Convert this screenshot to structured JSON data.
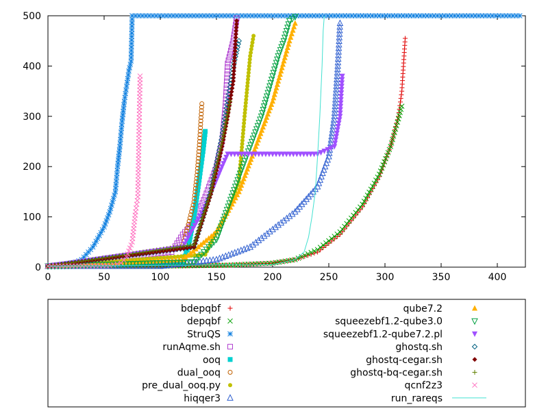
{
  "chart_data": {
    "type": "scatter",
    "title": "",
    "xlabel": "",
    "ylabel": "",
    "xlim": [
      0,
      425
    ],
    "ylim": [
      0,
      500
    ],
    "xticks": [
      0,
      50,
      100,
      150,
      200,
      250,
      300,
      350,
      400
    ],
    "yticks": [
      0,
      100,
      200,
      300,
      400,
      500
    ],
    "xtick_labels": [
      "0",
      "50",
      "100",
      "150",
      "200",
      "250",
      "300",
      "350",
      "400"
    ],
    "ytick_labels": [
      "0",
      "100",
      "200",
      "300",
      "400",
      "500"
    ],
    "grid": false,
    "legend_position": "bottom",
    "series": [
      {
        "name": "bdepqbf",
        "color": "#e00000",
        "marker": "plus",
        "x": [
          0,
          100,
          160,
          200,
          220,
          240,
          260,
          280,
          295,
          305,
          312,
          315,
          317,
          318
        ],
        "y": [
          2,
          2,
          4,
          8,
          15,
          30,
          65,
          120,
          180,
          240,
          300,
          350,
          420,
          455
        ]
      },
      {
        "name": "depqbf",
        "color": "#00a000",
        "marker": "x",
        "x": [
          0,
          100,
          160,
          200,
          220,
          240,
          260,
          280,
          295,
          305,
          312,
          315
        ],
        "y": [
          2,
          2,
          4,
          8,
          15,
          35,
          70,
          125,
          185,
          240,
          295,
          320
        ]
      },
      {
        "name": "StruQS",
        "color": "#1080e0",
        "marker": "star",
        "x": [
          0,
          20,
          30,
          40,
          50,
          55,
          60,
          62,
          64,
          66,
          68,
          70,
          72,
          74,
          75,
          78,
          420
        ],
        "y": [
          2,
          5,
          15,
          40,
          80,
          110,
          150,
          200,
          240,
          290,
          330,
          360,
          390,
          410,
          500,
          500,
          500
        ]
      },
      {
        "name": "runAqme.sh",
        "color": "#b040d0",
        "marker": "square",
        "x": [
          0,
          110,
          120,
          130,
          140,
          150,
          155,
          158,
          160,
          165,
          168
        ],
        "y": [
          2,
          30,
          65,
          90,
          140,
          200,
          250,
          320,
          405,
          450,
          495
        ]
      },
      {
        "name": "ooq",
        "color": "#00d0d0",
        "marker": "filled-square",
        "x": [
          0,
          120,
          125,
          130,
          135,
          138,
          140
        ],
        "y": [
          2,
          10,
          40,
          100,
          180,
          230,
          270
        ]
      },
      {
        "name": "dual_ooq",
        "color": "#c06000",
        "marker": "circle",
        "x": [
          0,
          120,
          130,
          133,
          135,
          137
        ],
        "y": [
          2,
          40,
          130,
          190,
          250,
          325
        ]
      },
      {
        "name": "pre_dual_ooq.py",
        "color": "#c0c000",
        "marker": "filled-circle",
        "x": [
          0,
          140,
          150,
          160,
          170,
          175,
          180,
          183
        ],
        "y": [
          2,
          25,
          70,
          110,
          170,
          300,
          420,
          460
        ]
      },
      {
        "name": "hiqqer3",
        "color": "#3060d0",
        "marker": "triangle",
        "x": [
          0,
          100,
          150,
          180,
          200,
          220,
          240,
          250,
          255,
          258,
          260
        ],
        "y": [
          2,
          2,
          15,
          40,
          75,
          110,
          160,
          220,
          300,
          400,
          485
        ]
      },
      {
        "name": "qube7.2",
        "color": "#ffb000",
        "marker": "filled-triangle",
        "x": [
          0,
          120,
          150,
          170,
          185,
          200,
          210,
          215,
          220
        ],
        "y": [
          2,
          15,
          70,
          150,
          240,
          330,
          410,
          450,
          485
        ]
      },
      {
        "name": "squeezebf1.2-qube3.0",
        "color": "#00a040",
        "marker": "triangle-down",
        "x": [
          0,
          130,
          150,
          170,
          190,
          200,
          205,
          210,
          215,
          220
        ],
        "y": [
          2,
          10,
          55,
          180,
          300,
          380,
          420,
          450,
          490,
          498
        ]
      },
      {
        "name": "squeezebf1.2-qube7.2.pl",
        "color": "#a050ff",
        "marker": "filled-triangle-down",
        "x": [
          0,
          120,
          140,
          155,
          160,
          200,
          240,
          255,
          260,
          262
        ],
        "y": [
          2,
          40,
          120,
          200,
          225,
          225,
          225,
          240,
          300,
          380
        ]
      },
      {
        "name": "ghostq.sh",
        "color": "#006080",
        "marker": "diamond",
        "x": [
          0,
          130,
          145,
          155,
          160,
          165,
          170
        ],
        "y": [
          2,
          40,
          150,
          260,
          330,
          400,
          450
        ]
      },
      {
        "name": "ghostq-cegar.sh",
        "color": "#800000",
        "marker": "filled-diamond",
        "x": [
          0,
          130,
          145,
          155,
          160,
          165,
          168
        ],
        "y": [
          2,
          40,
          145,
          240,
          300,
          370,
          490
        ]
      },
      {
        "name": "ghostq-bq-cegar.sh",
        "color": "#608000",
        "marker": "plus",
        "x": [
          0,
          130,
          145,
          155,
          162
        ],
        "y": [
          2,
          45,
          150,
          250,
          330
        ]
      },
      {
        "name": "qcnf2z3",
        "color": "#ff70c0",
        "marker": "x",
        "x": [
          0,
          55,
          65,
          70,
          75,
          78,
          80,
          82
        ],
        "y": [
          2,
          3,
          8,
          20,
          50,
          110,
          140,
          380
        ]
      },
      {
        "name": "run_rareqs",
        "color": "#40e0d0",
        "marker": "line",
        "x": [
          0,
          200,
          220,
          228,
          232,
          235,
          238,
          240,
          242,
          244,
          245,
          246
        ],
        "y": [
          2,
          5,
          15,
          30,
          60,
          100,
          150,
          220,
          300,
          400,
          470,
          500
        ]
      }
    ]
  }
}
